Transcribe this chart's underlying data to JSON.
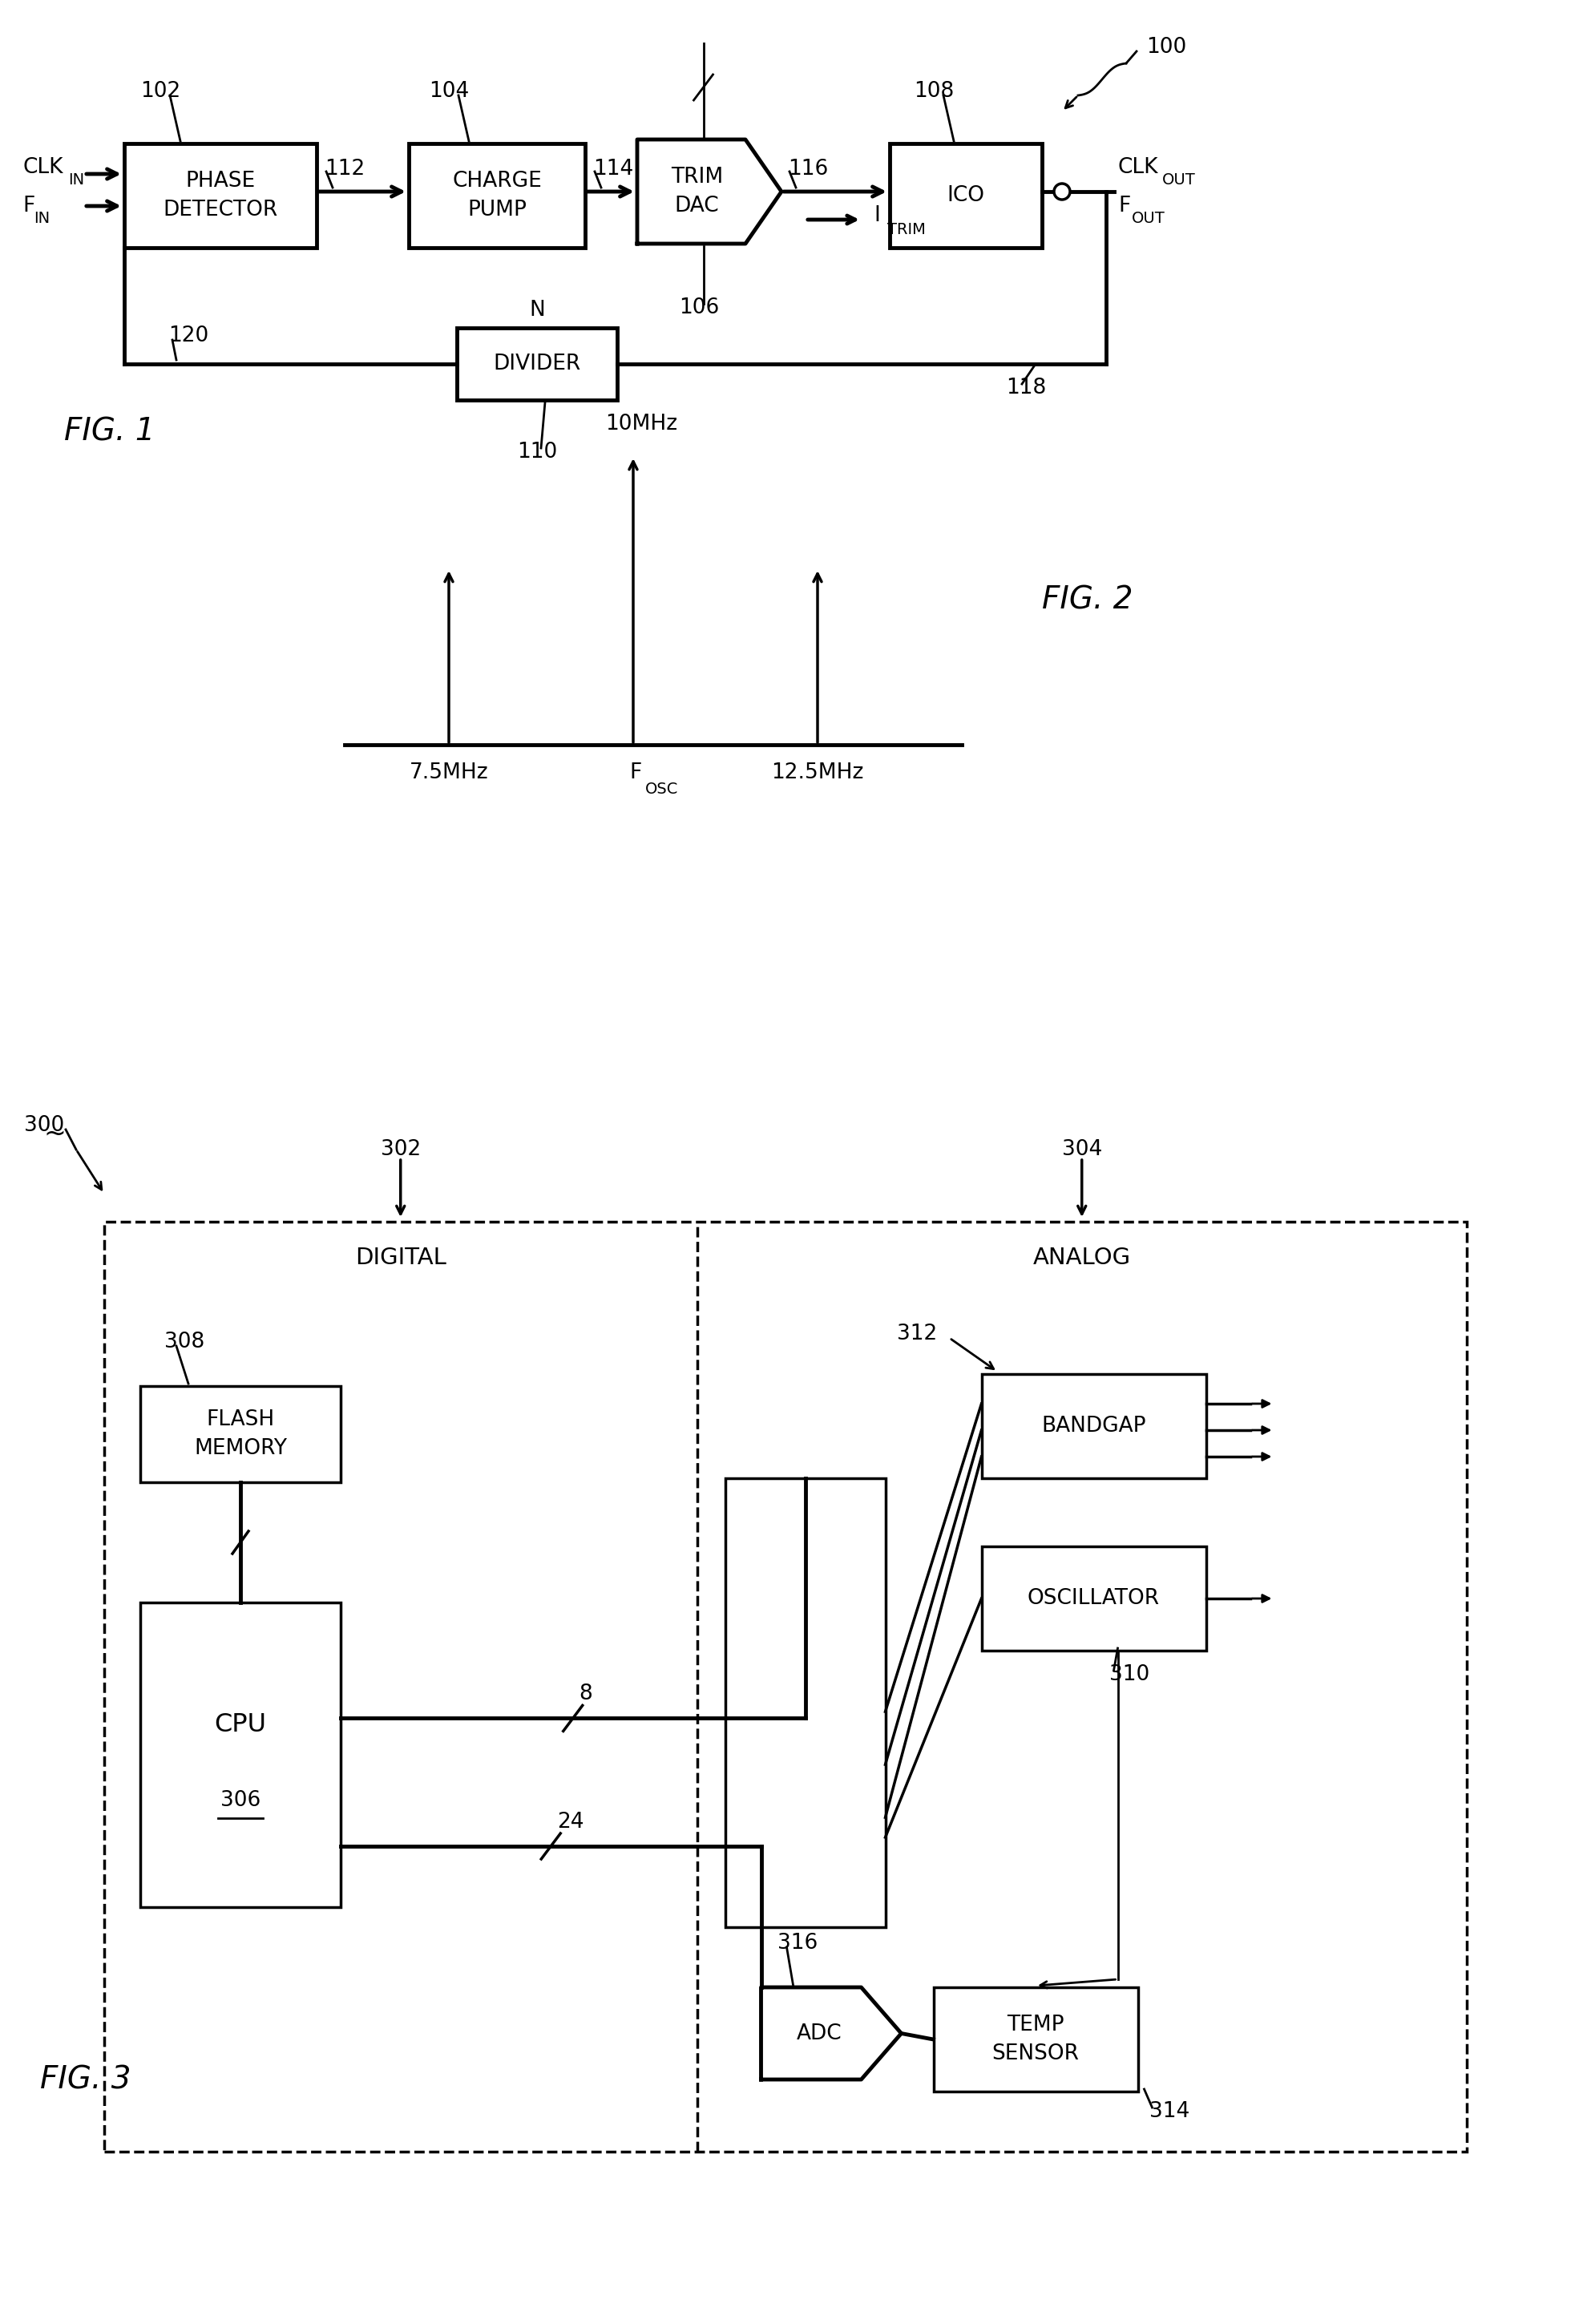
{
  "bg_color": "#ffffff",
  "line_color": "#000000",
  "fig1": {
    "title": "FIG. 1",
    "labels": [
      "100",
      "102",
      "104",
      "106",
      "108",
      "110",
      "112",
      "114",
      "116",
      "118",
      "120"
    ],
    "boxes": {
      "phase_detector": [
        "PHASE",
        "DETECTOR"
      ],
      "charge_pump": [
        "CHARGE",
        "PUMP"
      ],
      "trim_dac": [
        "TRIM",
        "DAC"
      ],
      "ico": [
        "ICO"
      ],
      "divider": [
        "DIVIDER"
      ]
    },
    "clk_in": "CLK",
    "clk_in_sub": "IN",
    "f_in": "F",
    "f_in_sub": "IN",
    "clk_out": "CLK",
    "clk_out_sub": "OUT",
    "f_out": "F",
    "f_out_sub": "OUT",
    "i_trim": "I",
    "i_trim_sub": "TRIM",
    "divider_n": "N"
  },
  "fig2": {
    "title": "FIG. 2",
    "label_10mhz": "10MHz",
    "label_75mhz": "7.5MHz",
    "label_fosc": "F",
    "label_fosc_sub": "OSC",
    "label_125mhz": "12.5MHz"
  },
  "fig3": {
    "title": "FIG. 3",
    "label_300": "300",
    "label_302": "302",
    "label_304": "304",
    "label_306": "306",
    "label_308": "308",
    "label_310": "310",
    "label_312": "312",
    "label_314": "314",
    "label_316": "316",
    "label_digital": "DIGITAL",
    "label_analog": "ANALOG",
    "label_flash": [
      "FLASH",
      "MEMORY"
    ],
    "label_cpu": "CPU",
    "label_bandgap": "BANDGAP",
    "label_oscillator": "OSCILLATOR",
    "label_adc": "ADC",
    "label_temp": [
      "TEMP",
      "SENSOR"
    ],
    "bus_8": "8",
    "bus_24": "24"
  }
}
